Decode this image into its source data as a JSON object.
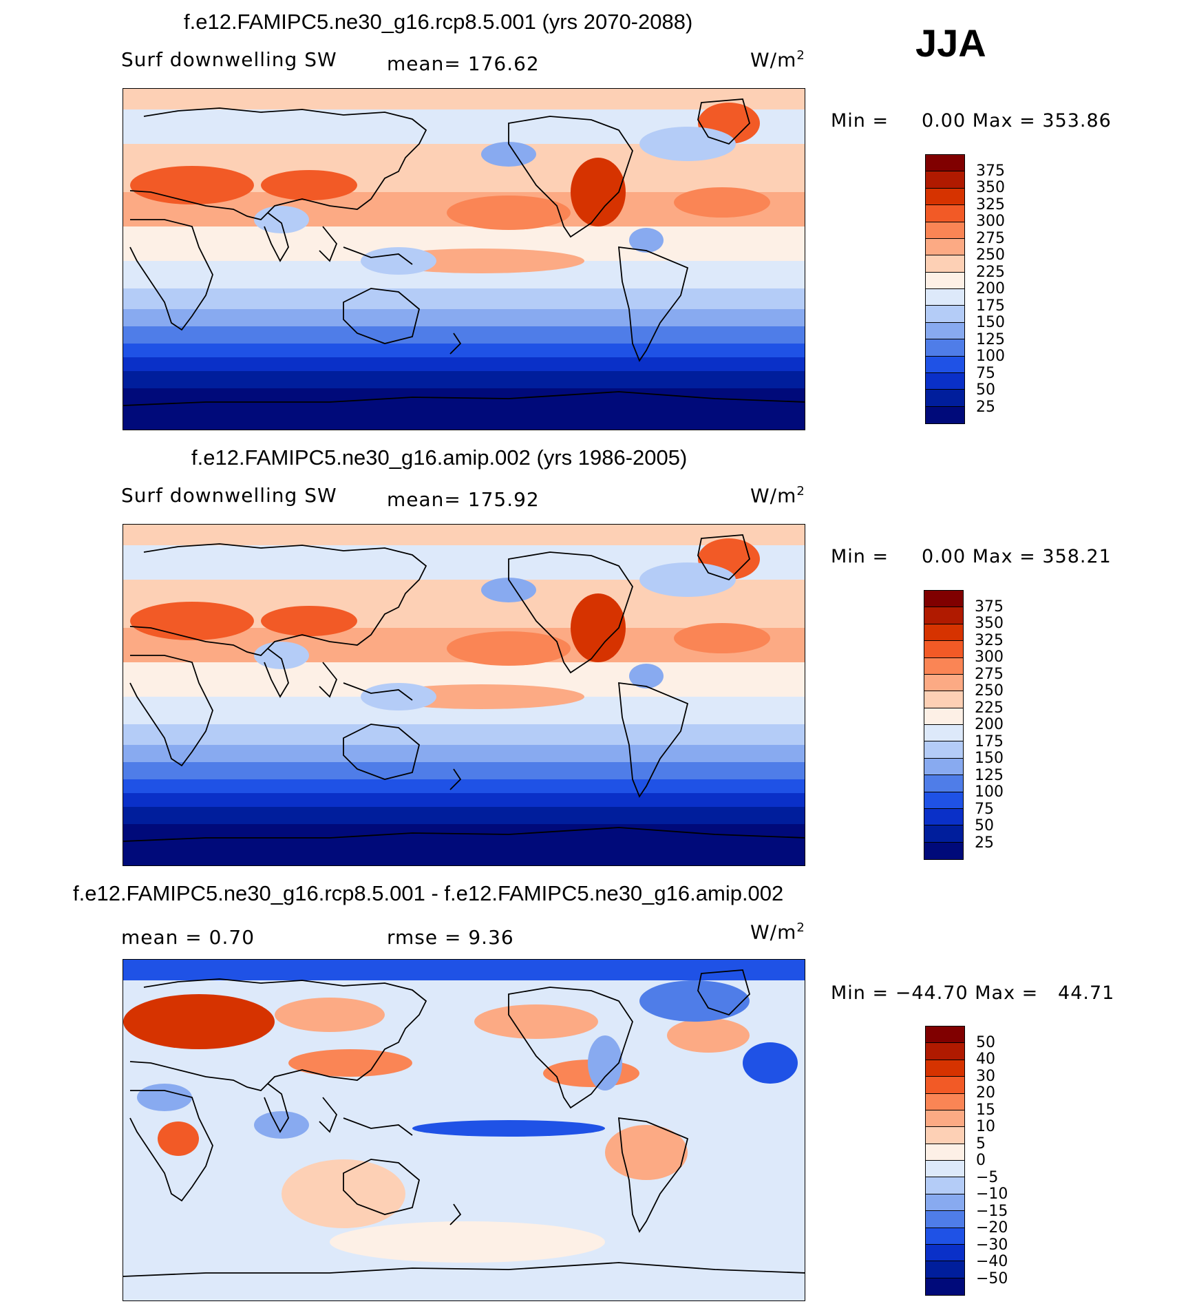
{
  "season": "JJA",
  "panels": [
    {
      "title": "f.e12.FAMIPC5.ne30_g16.rcp8.5.001 (yrs 2070-2088)",
      "left_label": "Surf  downwelling  SW",
      "center_label": "mean=  176.62",
      "units": "W/m",
      "units_sup": "2",
      "min_label": "Min  =",
      "min_value": "0.00",
      "max_label": "Max  =",
      "max_value": "353.86",
      "levels": [
        "375",
        "350",
        "325",
        "300",
        "275",
        "250",
        "225",
        "200",
        "175",
        "150",
        "125",
        "100",
        "75",
        "50",
        "25"
      ]
    },
    {
      "title": "f.e12.FAMIPC5.ne30_g16.amip.002 (yrs 1986-2005)",
      "left_label": "Surf  downwelling  SW",
      "center_label": "mean=  175.92",
      "units": "W/m",
      "units_sup": "2",
      "min_label": "Min  =",
      "min_value": "0.00",
      "max_label": "Max  =",
      "max_value": "358.21",
      "levels": [
        "375",
        "350",
        "325",
        "300",
        "275",
        "250",
        "225",
        "200",
        "175",
        "150",
        "125",
        "100",
        "75",
        "50",
        "25"
      ]
    },
    {
      "title": "f.e12.FAMIPC5.ne30_g16.rcp8.5.001 - f.e12.FAMIPC5.ne30_g16.amip.002",
      "left_label": "mean  =     0.70",
      "center_label": "rmse  =     9.36",
      "units": "W/m",
      "units_sup": "2",
      "min_label": "Min  =",
      "min_value": "−44.70",
      "max_label": "Max  =",
      "max_value": "44.71",
      "levels": [
        "50",
        "40",
        "30",
        "20",
        "15",
        "10",
        "5",
        "0",
        "−5",
        "−10",
        "−15",
        "−20",
        "−30",
        "−40",
        "−50"
      ]
    }
  ],
  "colors": {
    "abs_scale": [
      "#800000",
      "#b01a00",
      "#d63300",
      "#f25a26",
      "#fa8555",
      "#fcaa84",
      "#fdd0b5",
      "#fdf0e6",
      "#dde9fa",
      "#b4ccf7",
      "#88aaf0",
      "#4f7de8",
      "#1f52e6",
      "#0a30c8",
      "#001e9c",
      "#000a7a"
    ],
    "diff_scale": [
      "#800000",
      "#b01a00",
      "#d63300",
      "#f25a26",
      "#fa8555",
      "#fcaa84",
      "#fdd0b5",
      "#fdf0e6",
      "#dde9fa",
      "#b4ccf7",
      "#88aaf0",
      "#4f7de8",
      "#1f52e6",
      "#0a30c8",
      "#001e9c",
      "#000a7a"
    ]
  }
}
